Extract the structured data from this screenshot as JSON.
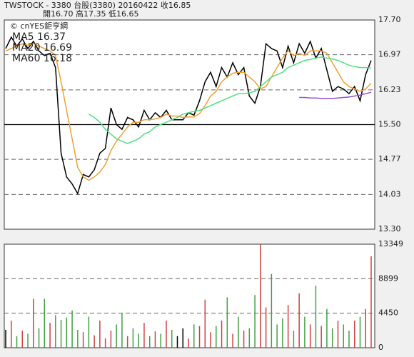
{
  "chart_data": [
    {
      "type": "line",
      "title": "TWSTOCK - 3380 台股(3380) 20160422 收16.85",
      "subtitle": "開16.70 高17.35 低16.65",
      "watermark": "© cnYES鉅亨網",
      "ylim": [
        13.3,
        17.7
      ],
      "yticks": [
        {
          "value": 13.3,
          "label": "13.30"
        },
        14.03,
        14.77,
        {
          "value": 15.5,
          "label": "15.50"
        },
        16.23,
        16.97,
        {
          "value": 17.7,
          "label": "17.70"
        }
      ],
      "grid": true,
      "series": [
        {
          "color": "#000000",
          "values": [
            17.1,
            17.34,
            17.15,
            17.3,
            17.1,
            17.25,
            17.05,
            16.95,
            17.0,
            16.7,
            14.9,
            14.4,
            14.25,
            14.05,
            14.45,
            14.4,
            14.55,
            14.9,
            15.0,
            15.85,
            15.5,
            15.4,
            15.65,
            15.6,
            15.45,
            15.8,
            15.6,
            15.75,
            15.65,
            15.8,
            15.6,
            15.6,
            15.6,
            15.75,
            15.7,
            16.0,
            16.4,
            16.6,
            16.3,
            16.7,
            16.5,
            16.8,
            16.55,
            16.7,
            16.1,
            15.95,
            16.3,
            17.2,
            17.1,
            17.05,
            16.7,
            17.15,
            16.8,
            17.2,
            17.0,
            17.25,
            16.9,
            17.1,
            16.65,
            16.2,
            16.3,
            16.25,
            16.15,
            16.3,
            16.0,
            16.55,
            16.85
          ]
        },
        {
          "name": "MA5 16.37",
          "color": "#f0a030",
          "values": [
            17.05,
            17.1,
            17.15,
            17.2,
            17.17,
            17.2,
            17.15,
            17.1,
            17.05,
            16.95,
            16.4,
            15.8,
            15.2,
            14.6,
            14.4,
            14.33,
            14.4,
            14.5,
            14.66,
            14.95,
            15.15,
            15.3,
            15.45,
            15.55,
            15.55,
            15.6,
            15.6,
            15.62,
            15.65,
            15.72,
            15.68,
            15.68,
            15.65,
            15.66,
            15.66,
            15.73,
            15.9,
            16.1,
            16.2,
            16.4,
            16.5,
            16.58,
            16.6,
            16.6,
            16.5,
            16.4,
            16.25,
            16.3,
            16.5,
            16.7,
            16.9,
            17.05,
            16.95,
            17.0,
            16.95,
            17.05,
            17.05,
            17.05,
            17.0,
            16.8,
            16.6,
            16.4,
            16.3,
            16.25,
            16.2,
            16.25,
            16.37
          ]
        },
        {
          "name": "MA20 16.69",
          "color": "#50e080",
          "values": [
            null,
            null,
            null,
            null,
            null,
            null,
            null,
            null,
            null,
            null,
            null,
            null,
            null,
            null,
            null,
            15.72,
            15.65,
            15.55,
            15.4,
            15.3,
            15.2,
            15.15,
            15.1,
            15.15,
            15.2,
            15.3,
            15.35,
            15.45,
            15.5,
            15.55,
            15.6,
            15.65,
            15.72,
            15.75,
            15.78,
            15.8,
            15.85,
            15.9,
            15.95,
            16.0,
            16.05,
            16.1,
            16.15,
            16.15,
            16.17,
            16.2,
            16.3,
            16.4,
            16.5,
            16.55,
            16.6,
            16.7,
            16.75,
            16.8,
            16.85,
            16.87,
            16.9,
            16.92,
            16.9,
            16.88,
            16.85,
            16.8,
            16.75,
            16.72,
            16.7,
            16.7,
            16.69
          ]
        },
        {
          "name": "MA60 16.18",
          "color": "#9050d0",
          "values": [
            null,
            null,
            null,
            null,
            null,
            null,
            null,
            null,
            null,
            null,
            null,
            null,
            null,
            null,
            null,
            null,
            null,
            null,
            null,
            null,
            null,
            null,
            null,
            null,
            null,
            null,
            null,
            null,
            null,
            null,
            null,
            null,
            null,
            null,
            null,
            null,
            null,
            null,
            null,
            null,
            null,
            null,
            null,
            null,
            null,
            null,
            null,
            null,
            null,
            null,
            null,
            null,
            null,
            16.07,
            16.07,
            16.06,
            16.06,
            16.05,
            16.05,
            16.05,
            16.06,
            16.07,
            16.08,
            16.1,
            16.12,
            16.15,
            16.18
          ]
        }
      ]
    },
    {
      "type": "bar",
      "ylim": [
        0,
        13349
      ],
      "yticks": [
        0,
        4450,
        8899,
        13349
      ],
      "grid": true,
      "up_color": "#d04040",
      "down_color": "#40a040",
      "flat_color": "#000000",
      "values": [
        2300,
        3500,
        1500,
        2200,
        1800,
        6300,
        2500,
        6300,
        3200,
        4200,
        3600,
        3900,
        4800,
        2300,
        2000,
        4000,
        1600,
        3500,
        1200,
        2200,
        3000,
        4500,
        1500,
        2500,
        1800,
        3200,
        1500,
        2100,
        1800,
        3500,
        2300,
        1500,
        2500,
        1200,
        3000,
        2800,
        6200,
        2000,
        2800,
        3500,
        6500,
        1800,
        4000,
        2200,
        2500,
        6800,
        13349,
        5200,
        9500,
        3000,
        3800,
        5500,
        2200,
        7000,
        4000,
        3000,
        8000,
        2800,
        5000,
        2500,
        3500,
        3000,
        2200,
        3500,
        4000,
        5000,
        11800
      ]
    }
  ]
}
